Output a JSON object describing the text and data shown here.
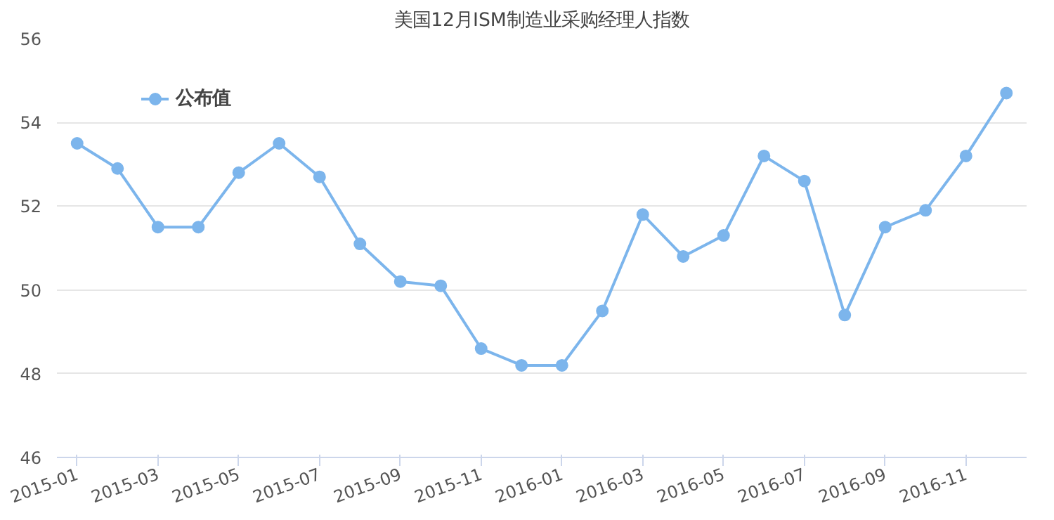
{
  "chart_data": {
    "type": "line",
    "title": "美国12月ISM制造业采购经理人指数",
    "categories": [
      "2015-01",
      null,
      "2015-03",
      null,
      "2015-05",
      null,
      "2015-07",
      null,
      "2015-09",
      null,
      "2015-11",
      null,
      "2016-01",
      null,
      "2016-03",
      null,
      "2016-05",
      null,
      "2016-07",
      null,
      "2016-09",
      null,
      "2016-11",
      null
    ],
    "series": [
      {
        "name": "公布值",
        "color": "#7cb5ec",
        "values": [
          53.5,
          52.9,
          51.5,
          51.5,
          52.8,
          53.5,
          52.7,
          51.1,
          50.2,
          50.1,
          48.6,
          48.2,
          48.2,
          49.5,
          51.8,
          50.8,
          51.3,
          53.2,
          52.6,
          49.4,
          51.5,
          51.9,
          53.2,
          54.7
        ]
      }
    ],
    "ylim": [
      46,
      56
    ],
    "yticks": [
      46,
      48,
      50,
      52,
      54,
      56
    ],
    "grid": "y",
    "legend": "top left",
    "marker": "circle",
    "line_style": "solid"
  }
}
